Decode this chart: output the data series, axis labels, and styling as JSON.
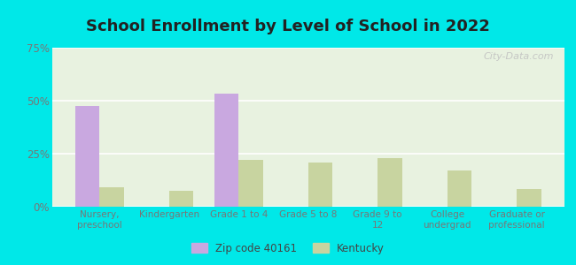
{
  "title": "School Enrollment by Level of School in 2022",
  "categories": [
    "Nursery,\npreschool",
    "Kindergarten",
    "Grade 1 to 4",
    "Grade 5 to 8",
    "Grade 9 to\n12",
    "College\nundergrad",
    "Graduate or\nprofessional"
  ],
  "zip_values": [
    47.5,
    0.0,
    53.5,
    0.0,
    0.0,
    0.0,
    0.0
  ],
  "ky_values": [
    9.0,
    7.5,
    22.0,
    21.0,
    23.0,
    17.0,
    8.5
  ],
  "zip_color": "#c9a8e0",
  "ky_color": "#c8d4a0",
  "background_outer": "#00e8e8",
  "background_inner_top": "#f0f8ee",
  "background_inner": "#e8f2e0",
  "ylim": [
    0,
    75
  ],
  "yticks": [
    0,
    25,
    50,
    75
  ],
  "ytick_labels": [
    "0%",
    "25%",
    "50%",
    "75%"
  ],
  "legend_zip_label": "Zip code 40161",
  "legend_ky_label": "Kentucky",
  "bar_width": 0.35,
  "watermark": "City-Data.com",
  "title_color": "#222222",
  "tick_color": "#777777"
}
